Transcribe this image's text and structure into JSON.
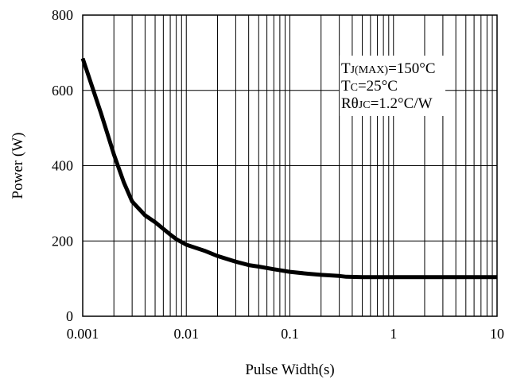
{
  "chart_data": {
    "type": "line",
    "title": "",
    "xlabel": "Pulse Width(s)",
    "ylabel": "Power (W)",
    "xscale": "log",
    "xlim": [
      0.001,
      10
    ],
    "ylim": [
      0,
      800
    ],
    "grid": true,
    "x_tick_labels": [
      "0.001",
      "0.01",
      "0.1",
      "1",
      "10"
    ],
    "y_tick_labels": [
      "0",
      "200",
      "400",
      "600",
      "800"
    ],
    "x_ticks": [
      0.001,
      0.01,
      0.1,
      1,
      10
    ],
    "y_ticks": [
      0,
      200,
      400,
      600,
      800
    ],
    "series": [
      {
        "x": [
          0.001,
          0.0015,
          0.002,
          0.0025,
          0.003,
          0.004,
          0.005,
          0.006,
          0.007,
          0.008,
          0.01,
          0.015,
          0.02,
          0.03,
          0.04,
          0.05,
          0.07,
          0.1,
          0.15,
          0.2,
          0.3,
          0.35,
          0.5,
          1,
          2,
          5,
          10
        ],
        "y": [
          685,
          540,
          430,
          355,
          305,
          268,
          250,
          232,
          217,
          205,
          190,
          174,
          160,
          145,
          136,
          132,
          125,
          118,
          113,
          110,
          107,
          105,
          104,
          104,
          104,
          104,
          104
        ],
        "color": "#000000"
      }
    ],
    "annotations": [
      {
        "main": "T",
        "sub": "J(MAX)",
        "rest": "=150°C"
      },
      {
        "main": "T",
        "sub": "C",
        "rest": "=25°C"
      },
      {
        "main": "Rθ",
        "sub": "JC",
        "rest": "=1.2°C/W"
      }
    ]
  }
}
